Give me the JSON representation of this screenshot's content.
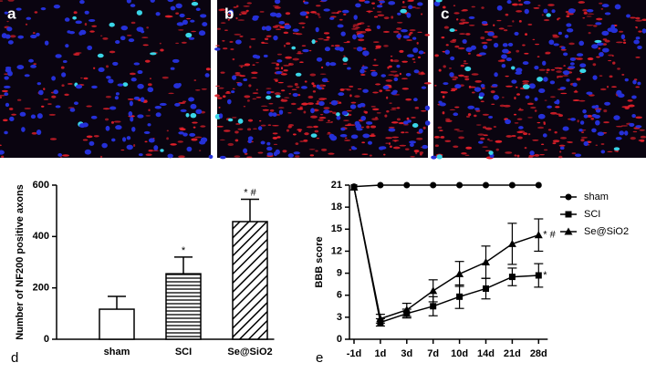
{
  "panels": [
    {
      "label": "a"
    },
    {
      "label": "b"
    },
    {
      "label": "c"
    }
  ],
  "chart_data": [
    {
      "type": "bar",
      "panel_label": "d",
      "ylabel": "Number of NF200 positive axons",
      "categories": [
        "sham",
        "SCI",
        "Se@SiO2"
      ],
      "values": [
        117,
        255,
        458
      ],
      "errors": [
        50,
        65,
        87
      ],
      "hatches": [
        "none",
        "horizontal",
        "diagonal"
      ],
      "color": "#000000",
      "annotations": [
        {
          "category": "SCI",
          "text": "*"
        },
        {
          "category": "Se@SiO2",
          "text": "* #"
        }
      ],
      "ylim": [
        0,
        600
      ],
      "yticks": [
        0,
        200,
        400,
        600
      ]
    },
    {
      "type": "line",
      "panel_label": "e",
      "ylabel": "BBB score",
      "categories": [
        "-1d",
        "1d",
        "3d",
        "7d",
        "10d",
        "14d",
        "21d",
        "28d"
      ],
      "series": [
        {
          "name": "sham",
          "color": "#000000",
          "marker": "circle",
          "values": [
            20.8,
            21,
            21,
            21,
            21,
            21,
            21,
            21
          ],
          "errors": [
            0,
            0,
            0,
            0,
            0,
            0,
            0,
            0
          ]
        },
        {
          "name": "SCI",
          "color": "#000000",
          "marker": "square",
          "values": [
            20.7,
            2.3,
            3.5,
            4.5,
            5.8,
            6.9,
            8.5,
            8.7
          ],
          "errors": [
            0,
            0.5,
            0.6,
            1.3,
            1.6,
            1.4,
            1.2,
            1.6
          ]
        },
        {
          "name": "Se@SiO2",
          "color": "#000000",
          "marker": "triangle",
          "values": [
            20.7,
            2.8,
            4,
            6.6,
            8.9,
            10.5,
            13,
            14.2
          ],
          "errors": [
            0,
            0.6,
            0.9,
            1.5,
            1.7,
            2.2,
            2.8,
            2.2
          ]
        }
      ],
      "annotations": [
        {
          "series": "Se@SiO2",
          "text": "* #"
        },
        {
          "series": "SCI",
          "text": "*"
        }
      ],
      "ylim": [
        0,
        21
      ],
      "yticks": [
        0,
        3,
        6,
        9,
        12,
        15,
        18,
        21
      ],
      "legend": "right"
    }
  ]
}
